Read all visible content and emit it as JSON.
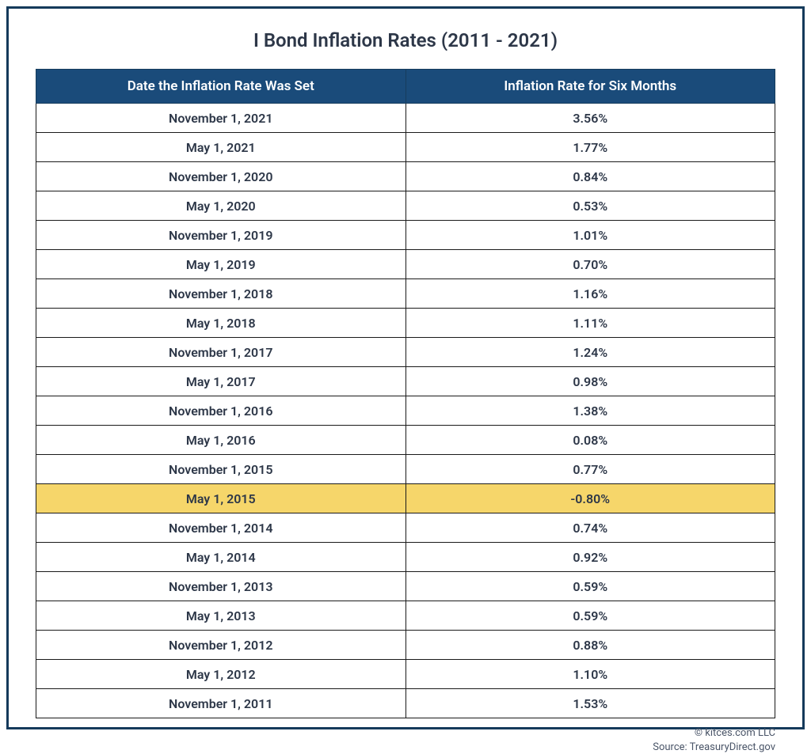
{
  "title": "I Bond Inflation Rates (2011 - 2021)",
  "table": {
    "type": "table",
    "header_bg": "#1a4b7a",
    "header_fg": "#ffffff",
    "cell_border": "#1a1a1a",
    "highlight_bg": "#f6d66a",
    "background_color": "#ffffff",
    "frame_border_color": "#153a5b",
    "title_fontsize": 24,
    "header_fontsize": 17,
    "cell_fontsize": 16,
    "columns": [
      {
        "key": "date",
        "label": "Date the Inflation Rate Was Set",
        "width": 0.5,
        "align": "center"
      },
      {
        "key": "rate",
        "label": "Inflation Rate for Six Months",
        "width": 0.5,
        "align": "center"
      }
    ],
    "rows": [
      {
        "date": "November 1, 2021",
        "rate": "3.56%",
        "highlight": false
      },
      {
        "date": "May 1, 2021",
        "rate": "1.77%",
        "highlight": false
      },
      {
        "date": "November 1, 2020",
        "rate": "0.84%",
        "highlight": false
      },
      {
        "date": "May 1, 2020",
        "rate": "0.53%",
        "highlight": false
      },
      {
        "date": "November 1, 2019",
        "rate": "1.01%",
        "highlight": false
      },
      {
        "date": "May 1, 2019",
        "rate": "0.70%",
        "highlight": false
      },
      {
        "date": "November 1, 2018",
        "rate": "1.16%",
        "highlight": false
      },
      {
        "date": "May 1, 2018",
        "rate": "1.11%",
        "highlight": false
      },
      {
        "date": "November 1, 2017",
        "rate": "1.24%",
        "highlight": false
      },
      {
        "date": "May 1, 2017",
        "rate": "0.98%",
        "highlight": false
      },
      {
        "date": "November 1, 2016",
        "rate": "1.38%",
        "highlight": false
      },
      {
        "date": "May 1, 2016",
        "rate": "0.08%",
        "highlight": false
      },
      {
        "date": "November 1, 2015",
        "rate": "0.77%",
        "highlight": false
      },
      {
        "date": "May 1, 2015",
        "rate": "-0.80%",
        "highlight": true
      },
      {
        "date": "November 1, 2014",
        "rate": "0.74%",
        "highlight": false
      },
      {
        "date": "May 1, 2014",
        "rate": "0.92%",
        "highlight": false
      },
      {
        "date": "November 1, 2013",
        "rate": "0.59%",
        "highlight": false
      },
      {
        "date": "May 1, 2013",
        "rate": "0.59%",
        "highlight": false
      },
      {
        "date": "November 1, 2012",
        "rate": "0.88%",
        "highlight": false
      },
      {
        "date": "May 1, 2012",
        "rate": "1.10%",
        "highlight": false
      },
      {
        "date": "November 1, 2011",
        "rate": "1.53%",
        "highlight": false
      }
    ]
  },
  "footer": {
    "line1": "© kitces.com LLC",
    "line2": "Source: TreasuryDirect.gov"
  }
}
